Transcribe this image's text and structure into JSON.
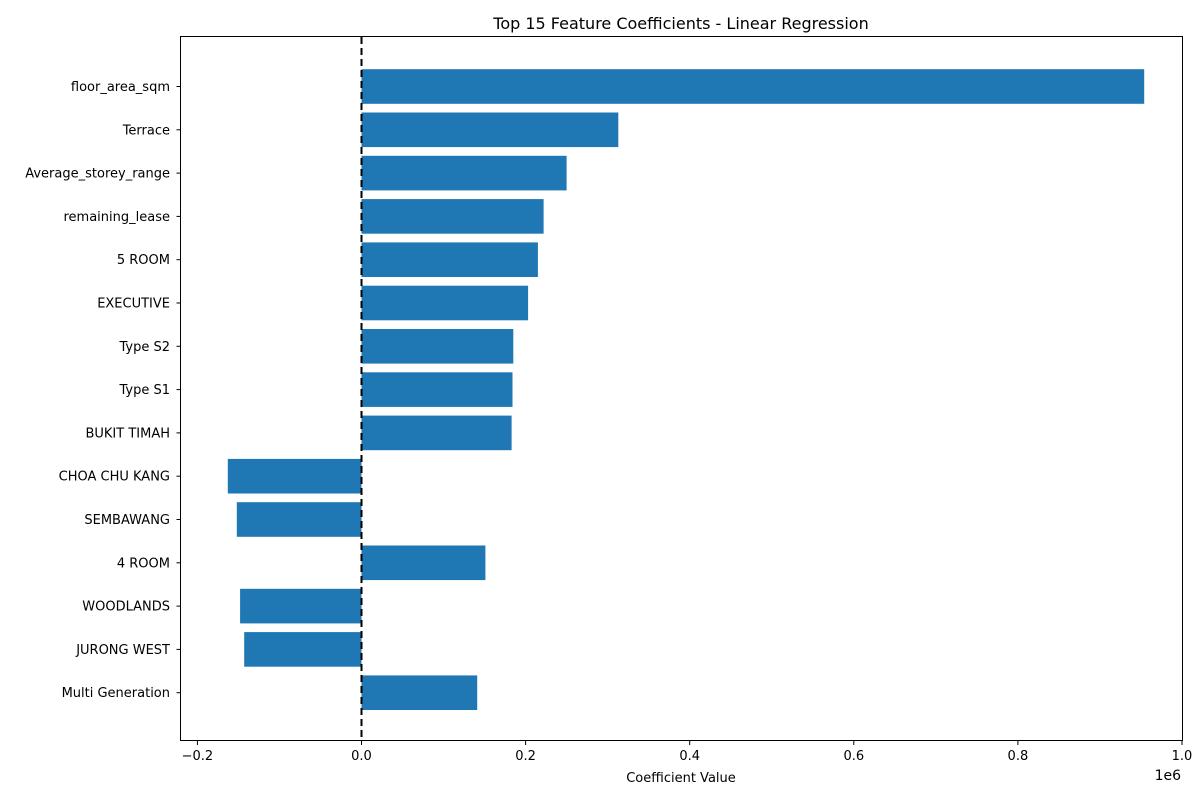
{
  "chart_data": {
    "type": "bar",
    "orientation": "horizontal",
    "title": "Top 15 Feature Coefficients - Linear Regression",
    "xlabel": "Coefficient Value",
    "ylabel": "",
    "x_offset_label": "1e6",
    "x_multiplier": 1000000,
    "xlim": [
      -0.22,
      1.0
    ],
    "x_ticks": [
      -0.2,
      0.0,
      0.2,
      0.4,
      0.6,
      0.8,
      1.0
    ],
    "x_tick_labels": [
      "−0.2",
      "0.0",
      "0.2",
      "0.4",
      "0.6",
      "0.8",
      "1.0"
    ],
    "grid": false,
    "reference_line": {
      "x": 0,
      "style": "dashed",
      "color": "#000000"
    },
    "bar_color": "#1f77b4",
    "categories": [
      "floor_area_sqm",
      "Terrace",
      "Average_storey_range",
      "remaining_lease",
      "5 ROOM",
      "EXECUTIVE",
      "Type S2",
      "Type S1",
      "BUKIT TIMAH",
      "CHOA CHU KANG",
      "SEMBAWANG",
      "4 ROOM",
      "WOODLANDS",
      "JURONG WEST",
      "Multi Generation"
    ],
    "values": [
      954000,
      313000,
      250000,
      222000,
      215000,
      203000,
      185000,
      184000,
      183000,
      -163000,
      -152000,
      151000,
      -148000,
      -143000,
      141000
    ]
  }
}
